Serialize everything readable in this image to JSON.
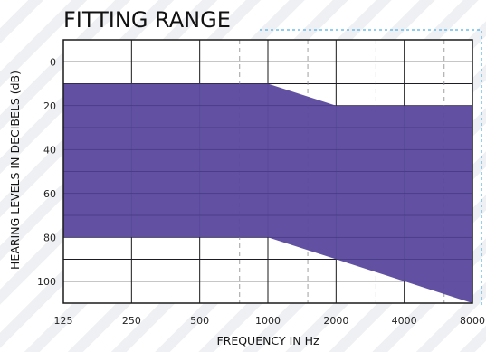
{
  "chart_data": {
    "type": "area",
    "title": "FITTING RANGE",
    "xlabel": "FREQUENCY IN Hz",
    "ylabel": "HEARING LEVELS IN DECIBELS (dB)",
    "x_scale": "log2",
    "x_ticks": [
      "125",
      "250",
      "500",
      "1000",
      "2000",
      "4000",
      "8000"
    ],
    "x_tick_values": [
      125,
      250,
      500,
      1000,
      2000,
      4000,
      8000
    ],
    "x_minor_dashed": [
      750,
      1500,
      3000,
      6000
    ],
    "y_ticks": [
      "0",
      "20",
      "40",
      "60",
      "80",
      "100"
    ],
    "y_tick_values": [
      0,
      20,
      40,
      60,
      80,
      100
    ],
    "ylim": [
      -10,
      110
    ],
    "y_inverted": true,
    "grid": true,
    "series": [
      {
        "role": "range-top",
        "x": [
          125,
          1000,
          2000,
          8000
        ],
        "y": [
          10,
          10,
          20,
          20
        ]
      },
      {
        "role": "range-bottom",
        "x": [
          125,
          1000,
          8000
        ],
        "y": [
          80,
          80,
          110
        ]
      }
    ],
    "colors": {
      "fill": "#5c4a9e",
      "grid": "#1a1a1a",
      "dashed": "#a0a0a0",
      "frame_accent": "#4fb0e6"
    }
  }
}
